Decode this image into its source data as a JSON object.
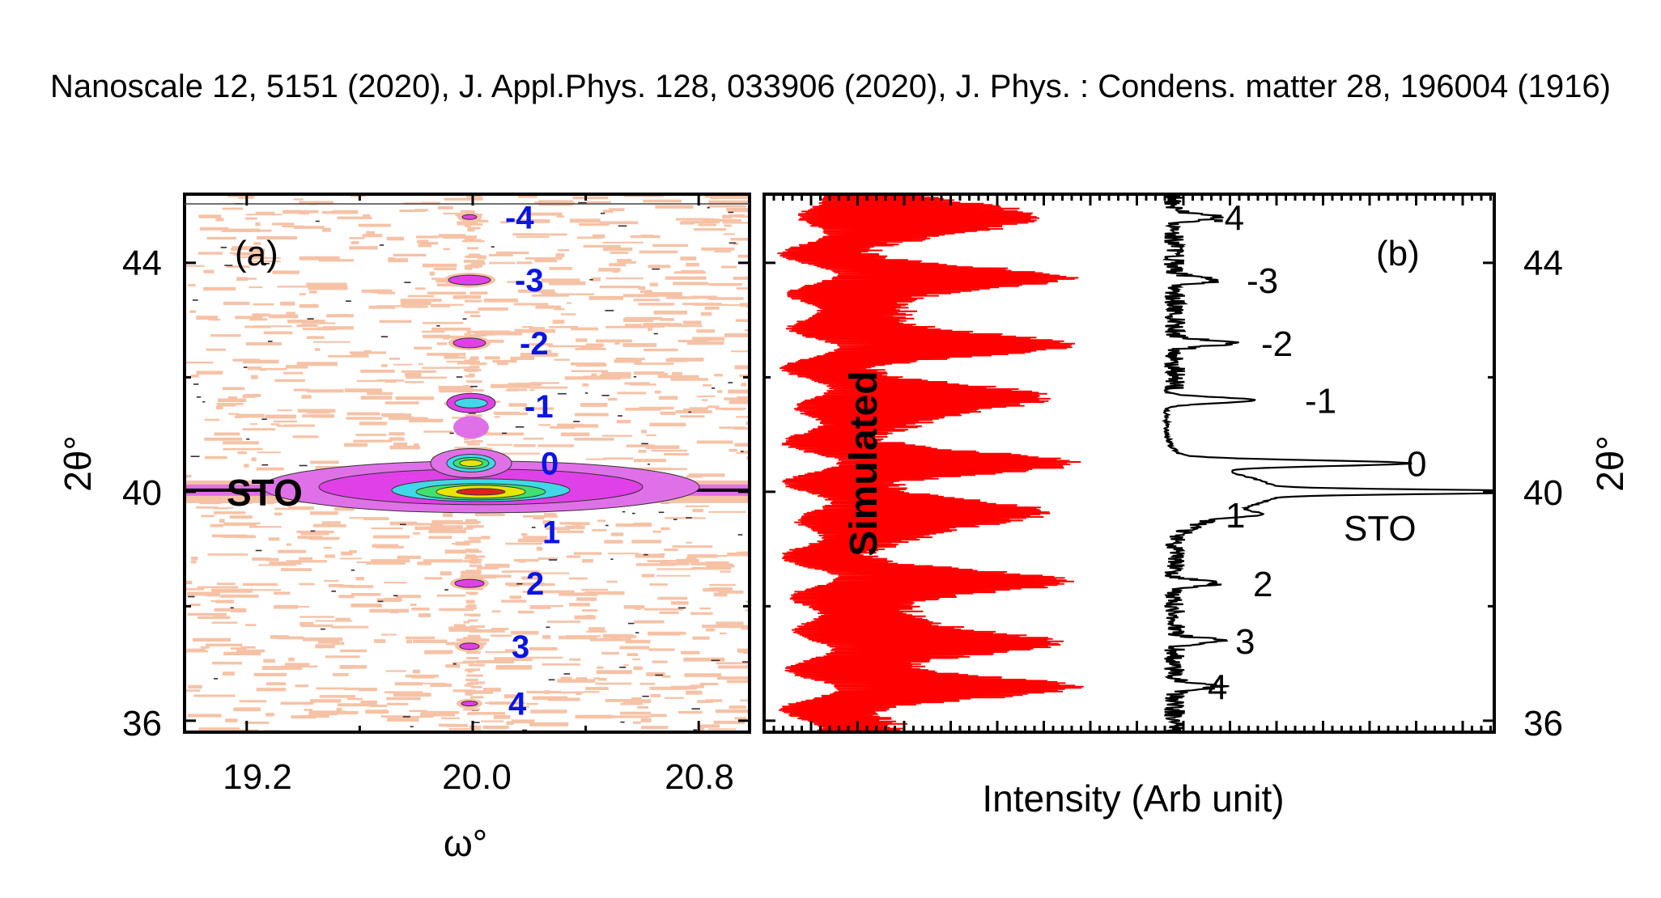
{
  "header": {
    "references": "Nanoscale 12, 5151 (2020), J. Appl.Phys. 128, 033906 (2020), J. Phys. : Condens. matter 28, 196004 (1916)"
  },
  "chart_data": [
    {
      "type": "heatmap",
      "panel_label": "(a)",
      "xlabel": "ω°",
      "ylabel": "2θ°",
      "xlim": [
        18.98,
        20.98
      ],
      "ylim": [
        35.8,
        45.2
      ],
      "xticks": [
        "19.2",
        "20.0",
        "20.8"
      ],
      "yticks": [
        "36",
        "40",
        "44"
      ],
      "substrate_label": {
        "text": "STO",
        "x": 19.2,
        "y": 40.0
      },
      "peaks": [
        {
          "label": "-4",
          "omega": 20.0,
          "two_theta": 44.8
        },
        {
          "label": "-3",
          "omega": 20.0,
          "two_theta": 43.7
        },
        {
          "label": "-2",
          "omega": 20.0,
          "two_theta": 42.6
        },
        {
          "label": "-1",
          "omega": 20.0,
          "two_theta": 41.5
        },
        {
          "label": "0",
          "omega": 20.0,
          "two_theta": 40.5
        },
        {
          "label": "1",
          "omega": 20.0,
          "two_theta": 39.3
        },
        {
          "label": "2",
          "omega": 20.0,
          "two_theta": 38.4
        },
        {
          "label": "3",
          "omega": 20.0,
          "two_theta": 37.3
        },
        {
          "label": "4",
          "omega": 20.0,
          "two_theta": 36.3
        }
      ],
      "colors": {
        "level1": "#f6c2a6",
        "level2": "#e070e8",
        "level3": "#e040e8",
        "level4": "#40d8e8",
        "level5": "#40e070",
        "level6": "#e6e600",
        "level7": "#e02020",
        "label_blue": "#0a14e6"
      }
    },
    {
      "type": "line",
      "panel_label": "(b)",
      "xlabel": "Intensity (Arb unit)",
      "ylabel": "2θ°",
      "ylim": [
        35.8,
        45.2
      ],
      "yticks": [
        "36",
        "40",
        "44"
      ],
      "series": [
        {
          "name": "Simulated",
          "color": "#ff0000"
        },
        {
          "name": "",
          "color": "#000000"
        }
      ],
      "substrate_label": {
        "text": "STO",
        "two_theta": 39.6
      },
      "peaks": [
        {
          "label": "-4",
          "two_theta": 44.8
        },
        {
          "label": "-3",
          "two_theta": 43.7
        },
        {
          "label": "-2",
          "two_theta": 42.6
        },
        {
          "label": "-1",
          "two_theta": 41.6
        },
        {
          "label": "0",
          "two_theta": 40.5
        },
        {
          "label": "1",
          "two_theta": 39.6
        },
        {
          "label": "2",
          "two_theta": 38.4
        },
        {
          "label": "3",
          "two_theta": 37.4
        },
        {
          "label": "4",
          "two_theta": 36.6
        }
      ]
    }
  ]
}
